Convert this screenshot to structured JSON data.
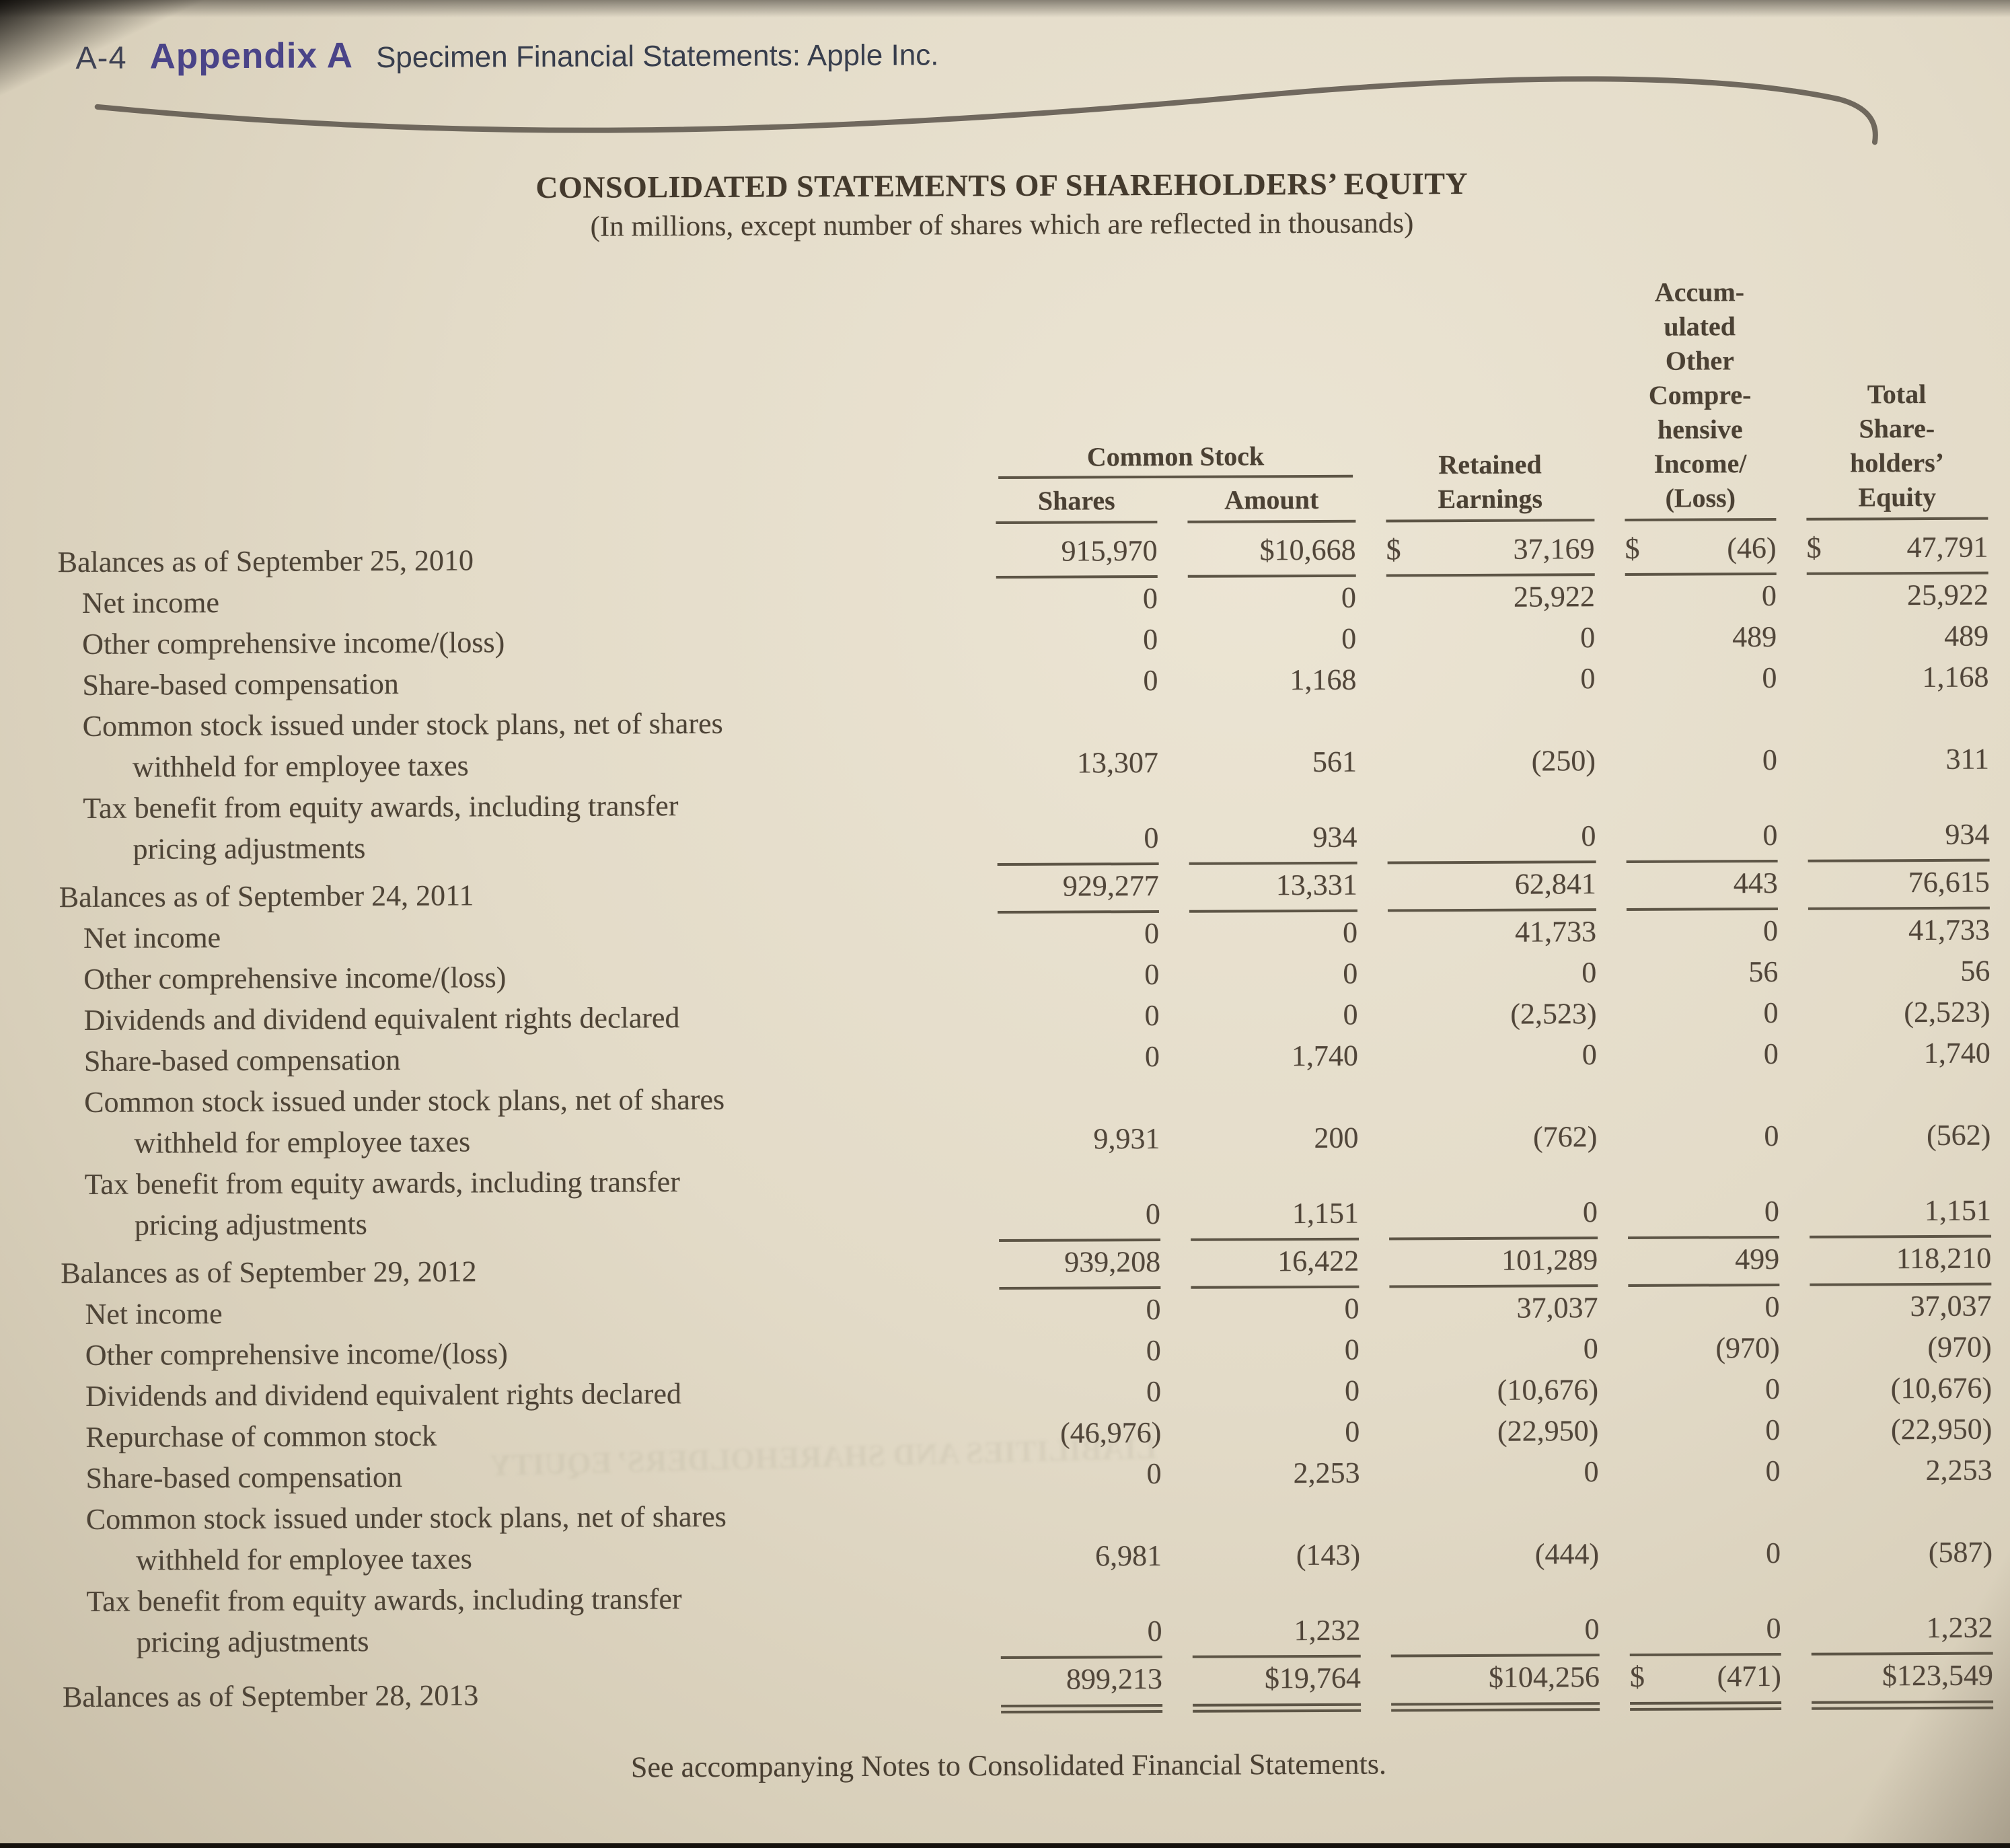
{
  "colors": {
    "paper": "#e4dcc9",
    "ink": "#4e4337",
    "appendix_blue": "#4a4488",
    "rule": "#5d5546"
  },
  "page_header": {
    "page_label": "A-4",
    "appendix_title": "Appendix A",
    "section_title": "Specimen Financial Statements: Apple Inc."
  },
  "statement": {
    "title": "CONSOLIDATED STATEMENTS OF SHAREHOLDERS’ EQUITY",
    "subtitle": "(In millions, except number of shares which are reflected in thousands)",
    "footnote": "See accompanying Notes to Consolidated Financial Statements."
  },
  "artifacts": {
    "bleed_through_text": "LIABILITIES AND SHAREHOLDERS’ EQUITY"
  },
  "table": {
    "headers": {
      "common_stock": "Common Stock",
      "shares": "Shares",
      "amount": "Amount",
      "retained": "Retained\nEarnings",
      "aoci": "Accum-\nulated\nOther\nCompre-\nhensive\nIncome/\n(Loss)",
      "total": "Total\nShare-\nholders’\nEquity"
    },
    "rows": [
      {
        "label_lines": [
          "Balances as of September 25, 2010"
        ],
        "indent": 0,
        "rule": "single",
        "values": [
          "915,970",
          "$10,668",
          {
            "d": "$",
            "v": "37,169"
          },
          {
            "d": "$",
            "v": "(46)"
          },
          {
            "d": "$",
            "v": "47,791"
          }
        ]
      },
      {
        "label_lines": [
          "Net income"
        ],
        "indent": 1,
        "values": [
          "0",
          "0",
          "25,922",
          "0",
          "25,922"
        ]
      },
      {
        "label_lines": [
          "Other comprehensive income/(loss)"
        ],
        "indent": 1,
        "values": [
          "0",
          "0",
          "0",
          "489",
          "489"
        ]
      },
      {
        "label_lines": [
          "Share-based compensation"
        ],
        "indent": 1,
        "values": [
          "0",
          "1,168",
          "0",
          "0",
          "1,168"
        ]
      },
      {
        "label_lines": [
          "Common stock issued under stock plans, net of shares",
          "withheld for employee taxes"
        ],
        "indent": 1,
        "values": [
          "13,307",
          "561",
          "(250)",
          "0",
          "311"
        ]
      },
      {
        "label_lines": [
          "Tax benefit from equity awards, including transfer",
          "pricing adjustments"
        ],
        "indent": 1,
        "rule": "single",
        "values": [
          "0",
          "934",
          "0",
          "0",
          "934"
        ]
      },
      {
        "label_lines": [
          "Balances as of September 24, 2011"
        ],
        "indent": 0,
        "rule": "single",
        "values": [
          "929,277",
          "13,331",
          "62,841",
          "443",
          "76,615"
        ]
      },
      {
        "label_lines": [
          "Net income"
        ],
        "indent": 1,
        "values": [
          "0",
          "0",
          "41,733",
          "0",
          "41,733"
        ]
      },
      {
        "label_lines": [
          "Other comprehensive income/(loss)"
        ],
        "indent": 1,
        "values": [
          "0",
          "0",
          "0",
          "56",
          "56"
        ]
      },
      {
        "label_lines": [
          "Dividends and dividend equivalent rights declared"
        ],
        "indent": 1,
        "values": [
          "0",
          "0",
          "(2,523)",
          "0",
          "(2,523)"
        ]
      },
      {
        "label_lines": [
          "Share-based compensation"
        ],
        "indent": 1,
        "values": [
          "0",
          "1,740",
          "0",
          "0",
          "1,740"
        ]
      },
      {
        "label_lines": [
          "Common stock issued under stock plans, net of shares",
          "withheld for employee taxes"
        ],
        "indent": 1,
        "values": [
          "9,931",
          "200",
          "(762)",
          "0",
          "(562)"
        ]
      },
      {
        "label_lines": [
          "Tax benefit from equity awards, including transfer",
          "pricing adjustments"
        ],
        "indent": 1,
        "rule": "single",
        "values": [
          "0",
          "1,151",
          "0",
          "0",
          "1,151"
        ]
      },
      {
        "label_lines": [
          "Balances as of September 29, 2012"
        ],
        "indent": 0,
        "rule": "single",
        "values": [
          "939,208",
          "16,422",
          "101,289",
          "499",
          "118,210"
        ]
      },
      {
        "label_lines": [
          "Net income"
        ],
        "indent": 1,
        "values": [
          "0",
          "0",
          "37,037",
          "0",
          "37,037"
        ]
      },
      {
        "label_lines": [
          "Other comprehensive income/(loss)"
        ],
        "indent": 1,
        "values": [
          "0",
          "0",
          "0",
          "(970)",
          "(970)"
        ]
      },
      {
        "label_lines": [
          "Dividends and dividend equivalent rights declared"
        ],
        "indent": 1,
        "values": [
          "0",
          "0",
          "(10,676)",
          "0",
          "(10,676)"
        ]
      },
      {
        "label_lines": [
          "Repurchase of common stock"
        ],
        "indent": 1,
        "values": [
          "(46,976)",
          "0",
          "(22,950)",
          "0",
          "(22,950)"
        ]
      },
      {
        "label_lines": [
          "Share-based compensation"
        ],
        "indent": 1,
        "values": [
          "0",
          "2,253",
          "0",
          "0",
          "2,253"
        ]
      },
      {
        "label_lines": [
          "Common stock issued under stock plans, net of shares",
          "withheld for employee taxes"
        ],
        "indent": 1,
        "values": [
          "6,981",
          "(143)",
          "(444)",
          "0",
          "(587)"
        ]
      },
      {
        "label_lines": [
          "Tax benefit from equity awards, including transfer",
          "pricing adjustments"
        ],
        "indent": 1,
        "rule": "single",
        "values": [
          "0",
          "1,232",
          "0",
          "0",
          "1,232"
        ]
      },
      {
        "label_lines": [
          "Balances as of September 28, 2013"
        ],
        "indent": 0,
        "rule": "double",
        "values": [
          "899,213",
          "$19,764",
          "$104,256",
          {
            "d": "$",
            "v": "(471)"
          },
          "$123,549"
        ]
      }
    ]
  }
}
